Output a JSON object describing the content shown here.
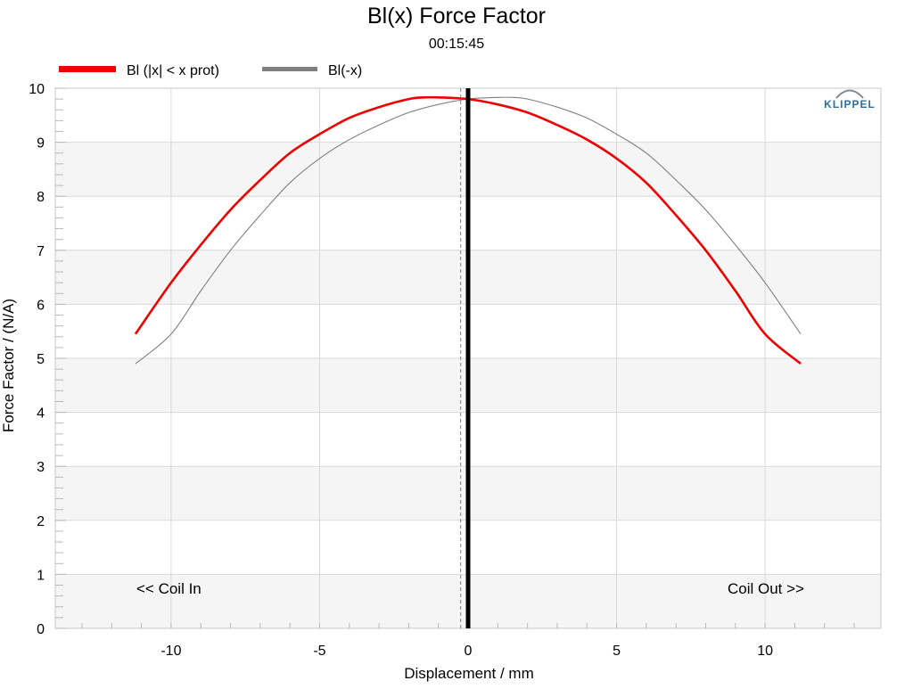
{
  "chart_data": {
    "type": "line",
    "title": "Bl(x) Force Factor",
    "subtitle": "00:15:45",
    "xlabel": "Displacement / mm",
    "ylabel": "Force Factor / (N/A)",
    "xlim": [
      -13.9,
      13.9
    ],
    "ylim": [
      0,
      10
    ],
    "xticks": [
      -10,
      -5,
      0,
      5,
      10
    ],
    "yticks": [
      0,
      1,
      2,
      3,
      4,
      5,
      6,
      7,
      8,
      9,
      10
    ],
    "grid": true,
    "legend_position": "top-left",
    "rest_position_marker": 0,
    "vertical_dashed_line": -0.25,
    "series": [
      {
        "name": "Bl (|x| < x prot)",
        "color": "#ee0000",
        "style": "bold",
        "x": [
          -11.2,
          -10,
          -9,
          -8,
          -7,
          -6,
          -5,
          -4,
          -3,
          -2,
          -1.5,
          -1,
          0,
          1,
          2,
          3,
          4,
          5,
          6,
          7,
          8,
          9,
          10,
          11.2
        ],
        "y": [
          5.45,
          6.4,
          7.1,
          7.75,
          8.3,
          8.8,
          9.15,
          9.45,
          9.65,
          9.8,
          9.83,
          9.83,
          9.8,
          9.7,
          9.55,
          9.32,
          9.05,
          8.7,
          8.25,
          7.65,
          7.0,
          6.25,
          5.45,
          4.9
        ]
      },
      {
        "name": "Bl(-x)",
        "color": "#808080",
        "style": "thin",
        "x": [
          -11.2,
          -10,
          -9,
          -8,
          -7,
          -6,
          -5,
          -4,
          -3,
          -2,
          -1,
          0,
          1,
          1.5,
          2,
          3,
          4,
          5,
          6,
          7,
          8,
          9,
          10,
          11.2
        ],
        "y": [
          4.9,
          5.45,
          6.25,
          7.0,
          7.65,
          8.25,
          8.7,
          9.05,
          9.32,
          9.55,
          9.7,
          9.8,
          9.83,
          9.83,
          9.8,
          9.65,
          9.45,
          9.15,
          8.8,
          8.3,
          7.75,
          7.1,
          6.4,
          5.45
        ]
      }
    ],
    "annotations": {
      "left": "<< Coil In",
      "right": "Coil Out >>"
    }
  },
  "logo": "KLIPPEL",
  "colors": {
    "band": "#f5f5f5",
    "grid": "#d9d9d9",
    "frame": "#c8c8c8",
    "marker": "#000000"
  }
}
